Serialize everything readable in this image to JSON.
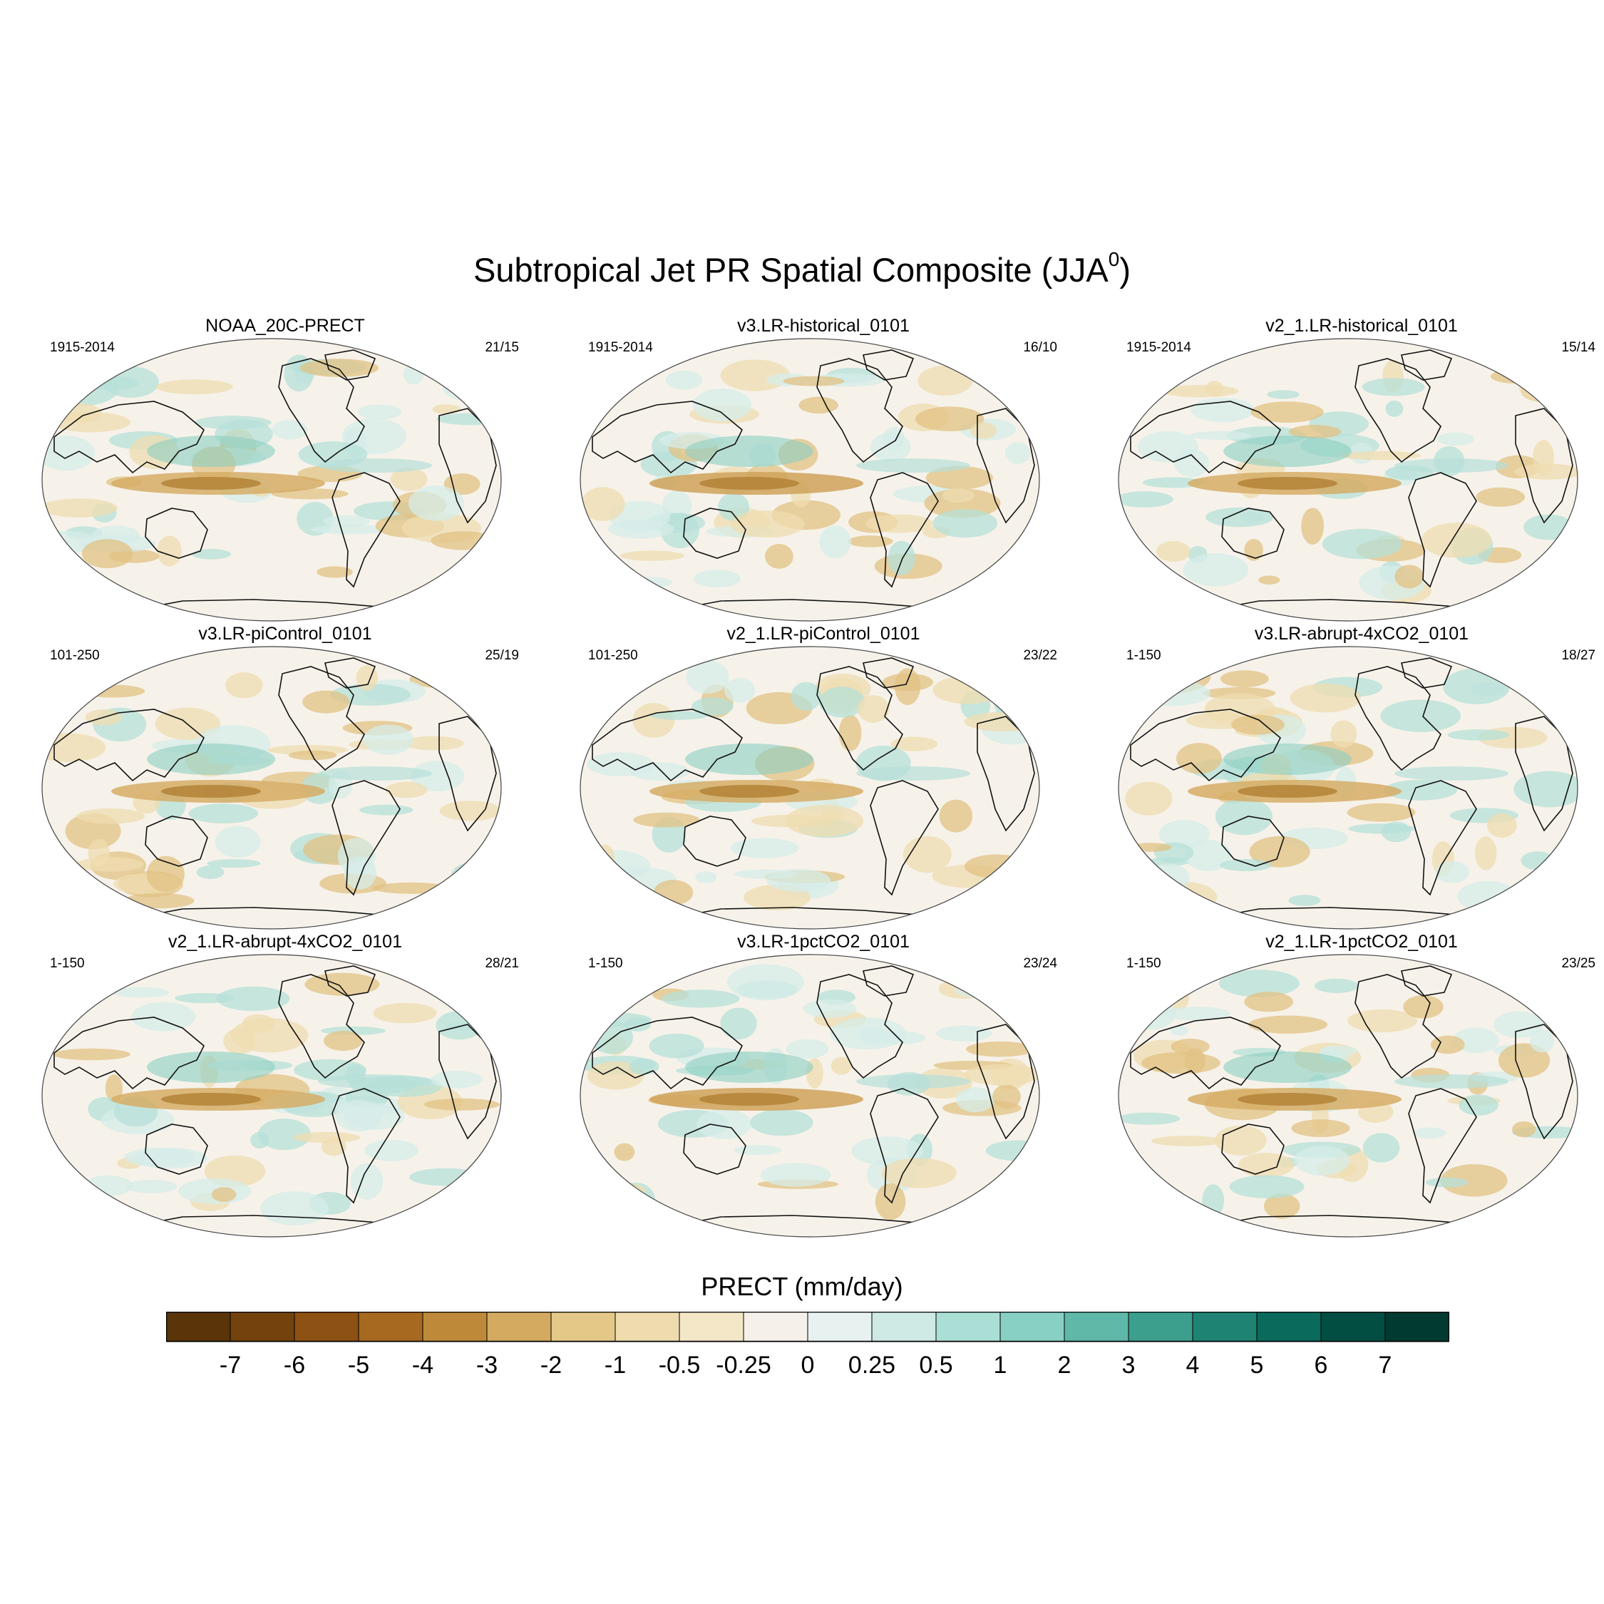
{
  "title": {
    "main": "Subtropical Jet PR Spatial Composite (JJA",
    "superscript": "0",
    "close": ")"
  },
  "panels": [
    {
      "title": "NOAA_20C-PRECT",
      "period": "1915-2014",
      "count": "21/15"
    },
    {
      "title": "v3.LR-historical_0101",
      "period": "1915-2014",
      "count": "16/10"
    },
    {
      "title": "v2_1.LR-historical_0101",
      "period": "1915-2014",
      "count": "15/14"
    },
    {
      "title": "v3.LR-piControl_0101",
      "period": "101-250",
      "count": "25/19"
    },
    {
      "title": "v2_1.LR-piControl_0101",
      "period": "101-250",
      "count": "23/22"
    },
    {
      "title": "v3.LR-abrupt-4xCO2_0101",
      "period": "1-150",
      "count": "18/27"
    },
    {
      "title": "v2_1.LR-abrupt-4xCO2_0101",
      "period": "1-150",
      "count": "28/21"
    },
    {
      "title": "v3.LR-1pctCO2_0101",
      "period": "1-150",
      "count": "23/24"
    },
    {
      "title": "v2_1.LR-1pctCO2_0101",
      "period": "1-150",
      "count": "23/25"
    }
  ],
  "colorbar": {
    "title": "PRECT (mm/day)",
    "ticks": [
      "-7",
      "-6",
      "-5",
      "-4",
      "-3",
      "-2",
      "-1",
      "-0.5",
      "-0.25",
      "0",
      "0.25",
      "0.5",
      "1",
      "2",
      "3",
      "4",
      "5",
      "6",
      "7"
    ],
    "colors": [
      "#5a3509",
      "#74420c",
      "#8c5113",
      "#a76920",
      "#be8a3a",
      "#d3aa5f",
      "#e3c888",
      "#eedcae",
      "#f3e7c8",
      "#f5f1ea",
      "#e7f1f0",
      "#cfe9e5",
      "#abdfd6",
      "#87d0c3",
      "#5fb8a8",
      "#3c9e8d",
      "#1f8374",
      "#0a6a5b",
      "#034e43",
      "#013a30"
    ]
  }
}
